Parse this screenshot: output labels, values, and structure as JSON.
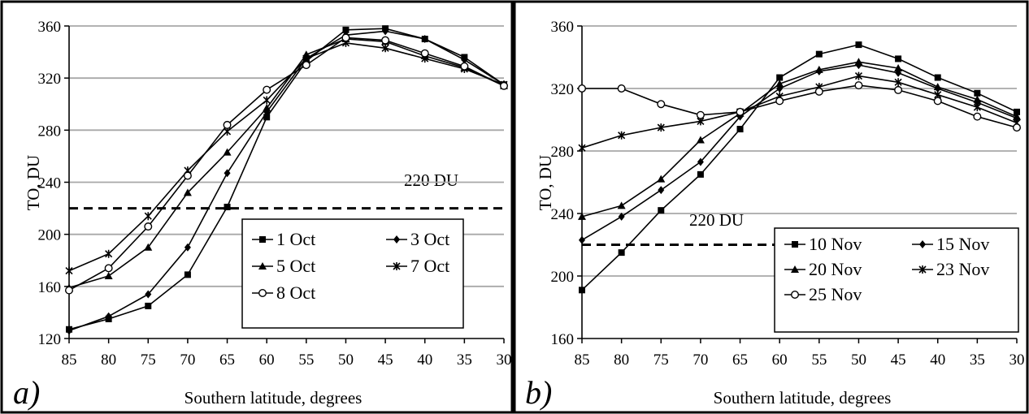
{
  "chart_data": [
    {
      "type": "line",
      "panel_label": "a)",
      "xlabel": "Southern latitude, degrees",
      "ylabel": "TO, DU",
      "x": [
        85,
        80,
        75,
        70,
        65,
        60,
        55,
        50,
        45,
        40,
        35,
        30
      ],
      "xlim": [
        85,
        30
      ],
      "ylim": [
        120,
        360
      ],
      "yticks": [
        120,
        160,
        200,
        240,
        280,
        320,
        360
      ],
      "grid": "horizontal",
      "legend_position": "bottom-right",
      "legend_columns": 2,
      "reference_line": {
        "value": 220,
        "label": "220 DU",
        "style": "dashed"
      },
      "series": [
        {
          "name": "1 Oct",
          "marker": "square",
          "values": [
            127,
            135,
            145,
            169,
            221,
            290,
            333,
            357,
            358,
            350,
            336,
            315
          ]
        },
        {
          "name": "3 Oct",
          "marker": "diamond",
          "values": [
            126,
            137,
            154,
            190,
            247,
            294,
            335,
            353,
            356,
            350,
            334,
            315
          ]
        },
        {
          "name": "5 Oct",
          "marker": "triangle",
          "values": [
            159,
            168,
            190,
            232,
            263,
            297,
            338,
            350,
            348,
            337,
            328,
            314
          ]
        },
        {
          "name": "7 Oct",
          "marker": "x",
          "values": [
            172,
            185,
            214,
            249,
            279,
            303,
            335,
            347,
            343,
            335,
            327,
            315
          ]
        },
        {
          "name": "8 Oct",
          "marker": "circle",
          "values": [
            157,
            174,
            206,
            245,
            284,
            311,
            330,
            351,
            349,
            339,
            329,
            314
          ]
        }
      ]
    },
    {
      "type": "line",
      "panel_label": "b)",
      "xlabel": "Southern latitude, degrees",
      "ylabel": "TO, DU",
      "x": [
        85,
        80,
        75,
        70,
        65,
        60,
        55,
        50,
        45,
        40,
        35,
        30
      ],
      "xlim": [
        85,
        30
      ],
      "ylim": [
        160,
        360
      ],
      "yticks": [
        160,
        200,
        240,
        280,
        320,
        360
      ],
      "grid": "horizontal",
      "legend_position": "bottom-right",
      "legend_columns": 2,
      "reference_line": {
        "value": 220,
        "label": "220 DU",
        "style": "dashed"
      },
      "series": [
        {
          "name": "10 Nov",
          "marker": "square",
          "values": [
            191,
            215,
            242,
            265,
            294,
            327,
            342,
            348,
            339,
            327,
            317,
            305
          ]
        },
        {
          "name": "15 Nov",
          "marker": "diamond",
          "values": [
            223,
            238,
            255,
            273,
            302,
            320,
            331,
            335,
            330,
            320,
            311,
            301
          ]
        },
        {
          "name": "20 Nov",
          "marker": "triangle",
          "values": [
            238,
            245,
            262,
            287,
            304,
            323,
            332,
            337,
            333,
            321,
            313,
            302
          ]
        },
        {
          "name": "23 Nov",
          "marker": "x",
          "values": [
            282,
            290,
            295,
            299,
            305,
            315,
            321,
            328,
            324,
            316,
            308,
            298
          ]
        },
        {
          "name": "25 Nov",
          "marker": "circle",
          "values": [
            320,
            320,
            310,
            303,
            305,
            312,
            318,
            322,
            319,
            312,
            302,
            295
          ]
        }
      ]
    }
  ]
}
